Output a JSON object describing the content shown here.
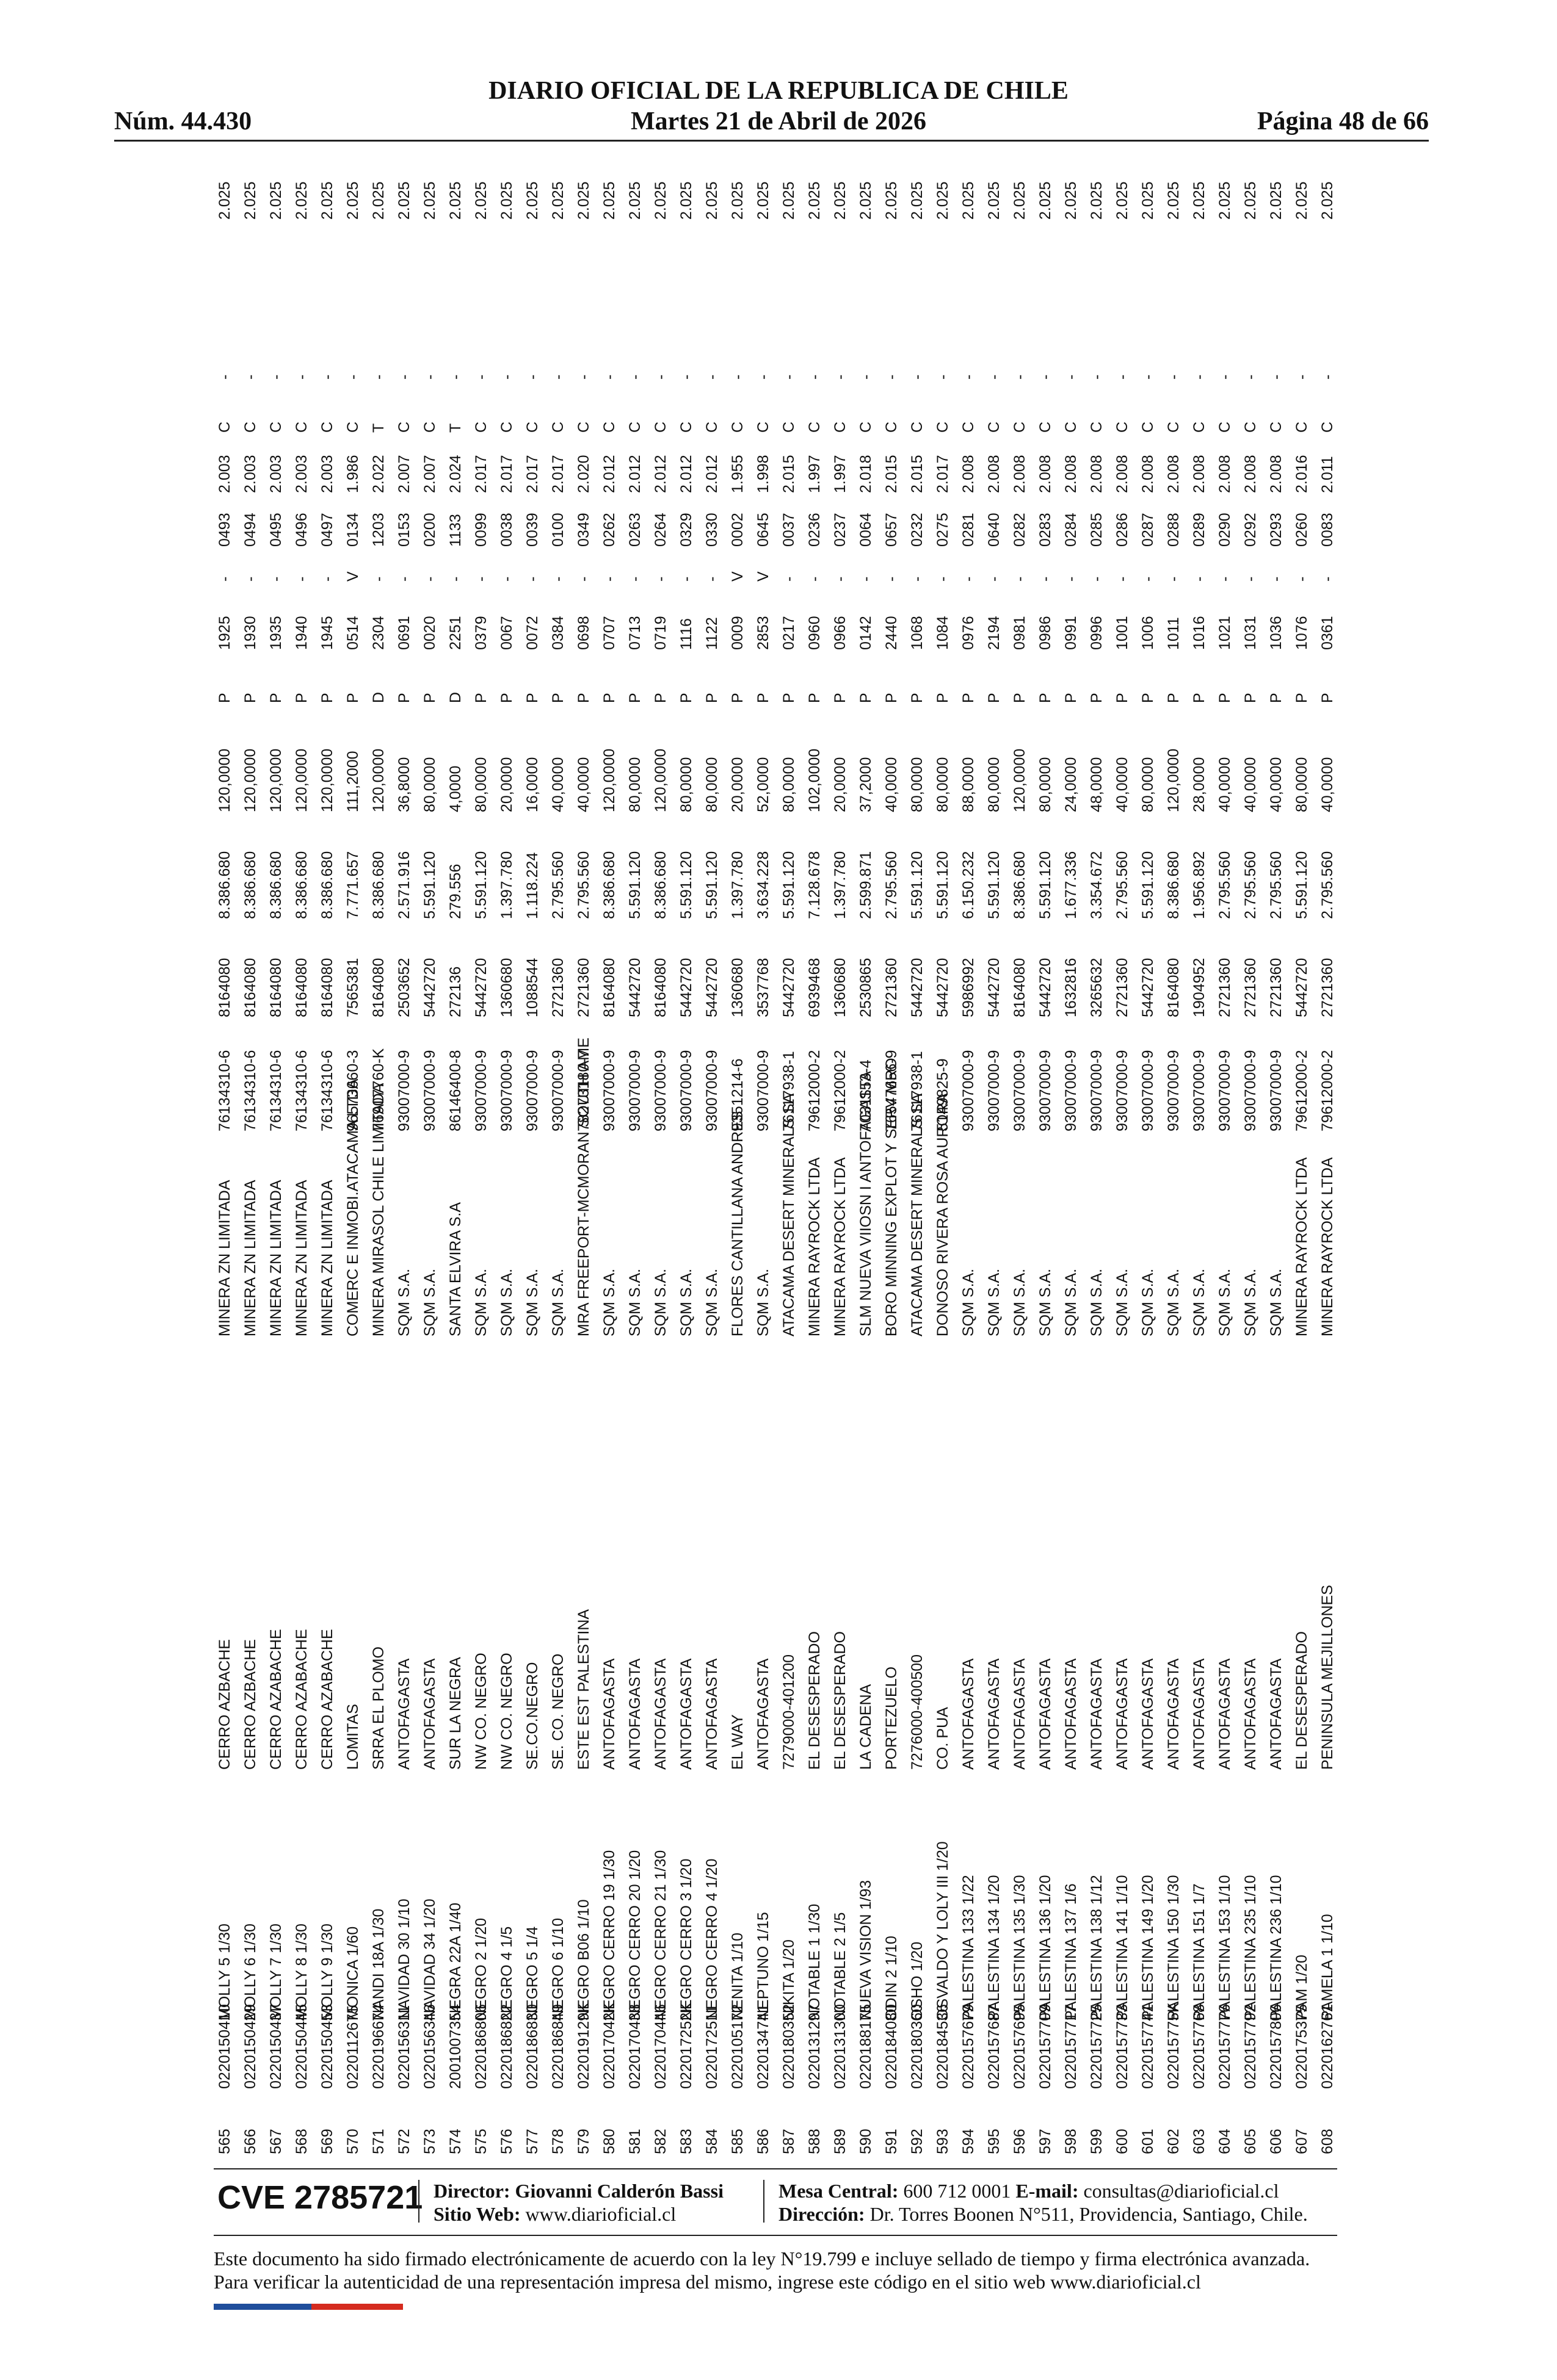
{
  "header": {
    "number": "Núm. 44.430",
    "title": "DIARIO OFICIAL DE LA REPUBLICA DE CHILE",
    "date": "Martes 21 de Abril de 2026",
    "page": "Página 48 de 66"
  },
  "table": {
    "rows": [
      [
        "565",
        "0220150410",
        "MOLLY 5 1/30",
        "CERRO AZBACHE",
        "MINERA ZN LIMITADA",
        "76134310-6",
        "8164080",
        "8.386.680",
        "120,0000",
        "P",
        "1925",
        "-",
        "0493",
        "2.003",
        "C",
        "-",
        "2.025"
      ],
      [
        "566",
        "0220150429",
        "MOLLY 6 1/30",
        "CERRO AZBACHE",
        "MINERA ZN LIMITADA",
        "76134310-6",
        "8164080",
        "8.386.680",
        "120,0000",
        "P",
        "1930",
        "-",
        "0494",
        "2.003",
        "C",
        "-",
        "2.025"
      ],
      [
        "567",
        "0220150437",
        "MOLLY 7 1/30",
        "CERRO AZABACHE",
        "MINERA ZN LIMITADA",
        "76134310-6",
        "8164080",
        "8.386.680",
        "120,0000",
        "P",
        "1935",
        "-",
        "0495",
        "2.003",
        "C",
        "-",
        "2.025"
      ],
      [
        "568",
        "0220150445",
        "MOLLY 8 1/30",
        "CERRO AZABACHE",
        "MINERA ZN LIMITADA",
        "76134310-6",
        "8164080",
        "8.386.680",
        "120,0000",
        "P",
        "1940",
        "-",
        "0496",
        "2.003",
        "C",
        "-",
        "2.025"
      ],
      [
        "569",
        "0220150453",
        "MOLLY 9 1/30",
        "CERRO AZABACHE",
        "MINERA ZN LIMITADA",
        "76134310-6",
        "8164080",
        "8.386.680",
        "120,0000",
        "P",
        "1945",
        "-",
        "0497",
        "2.003",
        "C",
        "-",
        "2.025"
      ],
      [
        "570",
        "0220112675",
        "MONICA 1/60",
        "LOMITAS",
        "COMERC E INMOBI.ATACAMA LTDA",
        "96573660-3",
        "7565381",
        "7.771.657",
        "111,2000",
        "P",
        "0514",
        "V",
        "0134",
        "1.986",
        "C",
        "-",
        "2.025"
      ],
      [
        "571",
        "0220196674",
        "NANDI 18A 1/30",
        "SRRA EL PLOMO",
        "MINERA MIRASOL CHILE LIMITADA",
        "76907760-K",
        "8164080",
        "8.386.680",
        "120,0000",
        "D",
        "2304",
        "-",
        "1203",
        "2.022",
        "T",
        "-",
        "2.025"
      ],
      [
        "572",
        "0220156311",
        "NAVIDAD 30 1/10",
        "ANTOFAGASTA",
        "SQM S.A.",
        "93007000-9",
        "2503652",
        "2.571.916",
        "36,8000",
        "P",
        "0691",
        "-",
        "0153",
        "2.007",
        "C",
        "-",
        "2.025"
      ],
      [
        "573",
        "0220156346",
        "NAVIDAD 34 1/20",
        "ANTOFAGASTA",
        "SQM S.A.",
        "93007000-9",
        "5442720",
        "5.591.120",
        "80,0000",
        "P",
        "0020",
        "-",
        "0200",
        "2.007",
        "C",
        "-",
        "2.025"
      ],
      [
        "574",
        "2001007354",
        "NEGRA 22A 1/40",
        "SUR LA NEGRA",
        "SANTA ELVIRA S.A",
        "86146400-8",
        "272136",
        "279.556",
        "4,0000",
        "D",
        "2251",
        "-",
        "1133",
        "2.024",
        "T",
        "-",
        "2.025"
      ],
      [
        "575",
        "0220186806",
        "NEGRO 2 1/20",
        "NW CO. NEGRO",
        "SQM S.A.",
        "93007000-9",
        "5442720",
        "5.591.120",
        "80,0000",
        "P",
        "0379",
        "-",
        "0099",
        "2.017",
        "C",
        "-",
        "2.025"
      ],
      [
        "576",
        "0220186822",
        "NEGRO 4 1/5",
        "NW CO. NEGRO",
        "SQM S.A.",
        "93007000-9",
        "1360680",
        "1.397.780",
        "20,0000",
        "P",
        "0067",
        "-",
        "0038",
        "2.017",
        "C",
        "-",
        "2.025"
      ],
      [
        "577",
        "0220186830",
        "NEGRO 5 1/4",
        "SE.CO.NEGRO",
        "SQM S.A.",
        "93007000-9",
        "1088544",
        "1.118.224",
        "16,0000",
        "P",
        "0072",
        "-",
        "0039",
        "2.017",
        "C",
        "-",
        "2.025"
      ],
      [
        "578",
        "0220186849",
        "NEGRO 6 1/10",
        "SE. CO. NEGRO",
        "SQM S.A.",
        "93007000-9",
        "2721360",
        "2.795.560",
        "40,0000",
        "P",
        "0384",
        "-",
        "0100",
        "2.017",
        "C",
        "-",
        "2.025"
      ],
      [
        "579",
        "022019129K",
        "NEGRO B06 1/10",
        "ESTE EST PALESTINA",
        "MRA FREEPORT-MCMORAN SOUTH AME",
        "78273180-7",
        "2721360",
        "2.795.560",
        "40,0000",
        "P",
        "0698",
        "-",
        "0349",
        "2.020",
        "C",
        "-",
        "2.025"
      ],
      [
        "580",
        "022017042K",
        "NEGRO CERRO 19 1/30",
        "ANTOFAGASTA",
        "SQM S.A.",
        "93007000-9",
        "8164080",
        "8.386.680",
        "120,0000",
        "P",
        "0707",
        "-",
        "0262",
        "2.012",
        "C",
        "-",
        "2.025"
      ],
      [
        "581",
        "0220170438",
        "NEGRO CERRO 20 1/20",
        "ANTOFAGASTA",
        "SQM S.A.",
        "93007000-9",
        "5442720",
        "5.591.120",
        "80,0000",
        "P",
        "0713",
        "-",
        "0263",
        "2.012",
        "C",
        "-",
        "2.025"
      ],
      [
        "582",
        "0220170446",
        "NEGRO CERRO 21 1/30",
        "ANTOFAGASTA",
        "SQM S.A.",
        "93007000-9",
        "8164080",
        "8.386.680",
        "120,0000",
        "P",
        "0719",
        "-",
        "0264",
        "2.012",
        "C",
        "-",
        "2.025"
      ],
      [
        "583",
        "022017252K",
        "NEGRO CERRO 3 1/20",
        "ANTOFAGASTA",
        "SQM S.A.",
        "93007000-9",
        "5442720",
        "5.591.120",
        "80,0000",
        "P",
        "1116",
        "-",
        "0329",
        "2.012",
        "C",
        "-",
        "2.025"
      ],
      [
        "584",
        "0220172511",
        "NEGRO CERRO 4 1/20",
        "ANTOFAGASTA",
        "SQM S.A.",
        "93007000-9",
        "5442720",
        "5.591.120",
        "80,0000",
        "P",
        "1122",
        "-",
        "0330",
        "2.012",
        "C",
        "-",
        "2.025"
      ],
      [
        "585",
        "0220105172",
        "NENITA 1/10",
        "EL WAY",
        "FLORES CANTILLANA ANDRES",
        "9351214-6",
        "1360680",
        "1.397.780",
        "20,0000",
        "P",
        "0009",
        "V",
        "0002",
        "1.955",
        "C",
        "-",
        "2.025"
      ],
      [
        "586",
        "0220134741",
        "NEPTUNO 1/15",
        "ANTOFAGASTA",
        "SQM S.A.",
        "93007000-9",
        "3537768",
        "3.634.228",
        "52,0000",
        "P",
        "2853",
        "V",
        "0645",
        "1.998",
        "C",
        "-",
        "2.025"
      ],
      [
        "587",
        "0220180352",
        "NIKITA 1/20",
        "7279000-401200",
        "ATACAMA DESERT MINERALS SA",
        "76117938-1",
        "5442720",
        "5.591.120",
        "80,0000",
        "P",
        "0217",
        "-",
        "0037",
        "2.015",
        "C",
        "-",
        "2.025"
      ],
      [
        "588",
        "0220131297",
        "NOTABLE 1 1/30",
        "EL DESESPERADO",
        "MINERA RAYROCK LTDA",
        "79612000-2",
        "6939468",
        "7.128.678",
        "102,0000",
        "P",
        "0960",
        "-",
        "0236",
        "1.997",
        "C",
        "-",
        "2.025"
      ],
      [
        "589",
        "0220131300",
        "NOTABLE 2 1/5",
        "EL DESESPERADO",
        "MINERA RAYROCK LTDA",
        "79612000-2",
        "1360680",
        "1.397.780",
        "20,0000",
        "P",
        "0966",
        "-",
        "0237",
        "1.997",
        "C",
        "-",
        "2.025"
      ],
      [
        "590",
        "0220188175",
        "NUEVA VISION 1/93",
        "LA CADENA",
        "SLM NUEVA VIIOSN I ANTOFAGASTA",
        "7031153-4",
        "2530865",
        "2.599.871",
        "37,2000",
        "P",
        "0142",
        "-",
        "0064",
        "2.018",
        "C",
        "-",
        "2.025"
      ],
      [
        "591",
        "0220184080",
        "ODIN 2 1/10",
        "PORTEZUELO",
        "BORO MINNING EXPLOT Y SERV MRO",
        "76547656-9",
        "2721360",
        "2.795.560",
        "40,0000",
        "P",
        "2440",
        "-",
        "0657",
        "2.015",
        "C",
        "-",
        "2.025"
      ],
      [
        "592",
        "0220180360",
        "OSHO 1/20",
        "7276000-400500",
        "ATACAMA DESERT MINERALS SA",
        "76117938-1",
        "5442720",
        "5.591.120",
        "80,0000",
        "P",
        "1068",
        "-",
        "0232",
        "2.015",
        "C",
        "-",
        "2.025"
      ],
      [
        "593",
        "0220184536",
        "OSVALDO Y LOLY III 1/20",
        "CO. PUA",
        "DONOSO RIVERA ROSA AURORA",
        "5149825-9",
        "5442720",
        "5.591.120",
        "80,0000",
        "P",
        "1084",
        "-",
        "0275",
        "2.017",
        "C",
        "-",
        "2.025"
      ],
      [
        "594",
        "0220157679",
        "PALESTINA 133 1/22",
        "ANTOFAGASTA",
        "SQM S.A.",
        "93007000-9",
        "5986992",
        "6.150.232",
        "88,0000",
        "P",
        "0976",
        "-",
        "0281",
        "2.008",
        "C",
        "-",
        "2.025"
      ],
      [
        "595",
        "0220157687",
        "PALESTINA 134 1/20",
        "ANTOFAGASTA",
        "SQM S.A.",
        "93007000-9",
        "5442720",
        "5.591.120",
        "80,0000",
        "P",
        "2194",
        "-",
        "0640",
        "2.008",
        "C",
        "-",
        "2.025"
      ],
      [
        "596",
        "0220157695",
        "PALESTINA 135 1/30",
        "ANTOFAGASTA",
        "SQM S.A.",
        "93007000-9",
        "8164080",
        "8.386.680",
        "120,0000",
        "P",
        "0981",
        "-",
        "0282",
        "2.008",
        "C",
        "-",
        "2.025"
      ],
      [
        "597",
        "0220157709",
        "PALESTINA 136 1/20",
        "ANTOFAGASTA",
        "SQM S.A.",
        "93007000-9",
        "5442720",
        "5.591.120",
        "80,0000",
        "P",
        "0986",
        "-",
        "0283",
        "2.008",
        "C",
        "-",
        "2.025"
      ],
      [
        "598",
        "0220157717",
        "PALESTINA 137 1/6",
        "ANTOFAGASTA",
        "SQM S.A.",
        "93007000-9",
        "1632816",
        "1.677.336",
        "24,0000",
        "P",
        "0991",
        "-",
        "0284",
        "2.008",
        "C",
        "-",
        "2.025"
      ],
      [
        "599",
        "0220157725",
        "PALESTINA 138 1/12",
        "ANTOFAGASTA",
        "SQM S.A.",
        "93007000-9",
        "3265632",
        "3.354.672",
        "48,0000",
        "P",
        "0996",
        "-",
        "0285",
        "2.008",
        "C",
        "-",
        "2.025"
      ],
      [
        "600",
        "0220157733",
        "PALESTINA 141 1/10",
        "ANTOFAGASTA",
        "SQM S.A.",
        "93007000-9",
        "2721360",
        "2.795.560",
        "40,0000",
        "P",
        "1001",
        "-",
        "0286",
        "2.008",
        "C",
        "-",
        "2.025"
      ],
      [
        "601",
        "0220157741",
        "PALESTINA 149 1/20",
        "ANTOFAGASTA",
        "SQM S.A.",
        "93007000-9",
        "5442720",
        "5.591.120",
        "80,0000",
        "P",
        "1006",
        "-",
        "0287",
        "2.008",
        "C",
        "-",
        "2.025"
      ],
      [
        "602",
        "022015775K",
        "PALESTINA 150 1/30",
        "ANTOFAGASTA",
        "SQM S.A.",
        "93007000-9",
        "8164080",
        "8.386.680",
        "120,0000",
        "P",
        "1011",
        "-",
        "0288",
        "2.008",
        "C",
        "-",
        "2.025"
      ],
      [
        "603",
        "0220157768",
        "PALESTINA 151 1/7",
        "ANTOFAGASTA",
        "SQM S.A.",
        "93007000-9",
        "1904952",
        "1.956.892",
        "28,0000",
        "P",
        "1016",
        "-",
        "0289",
        "2.008",
        "C",
        "-",
        "2.025"
      ],
      [
        "604",
        "0220157776",
        "PALESTINA 153 1/10",
        "ANTOFAGASTA",
        "SQM S.A.",
        "93007000-9",
        "2721360",
        "2.795.560",
        "40,0000",
        "P",
        "1021",
        "-",
        "0290",
        "2.008",
        "C",
        "-",
        "2.025"
      ],
      [
        "605",
        "0220157792",
        "PALESTINA 235 1/10",
        "ANTOFAGASTA",
        "SQM S.A.",
        "93007000-9",
        "2721360",
        "2.795.560",
        "40,0000",
        "P",
        "1031",
        "-",
        "0292",
        "2.008",
        "C",
        "-",
        "2.025"
      ],
      [
        "606",
        "0220157806",
        "PALESTINA 236 1/10",
        "ANTOFAGASTA",
        "SQM S.A.",
        "93007000-9",
        "2721360",
        "2.795.560",
        "40,0000",
        "P",
        "1036",
        "-",
        "0293",
        "2.008",
        "C",
        "-",
        "2.025"
      ],
      [
        "607",
        "0220175375",
        "PAM 1/20",
        "EL DESESPERADO",
        "MINERA RAYROCK LTDA",
        "79612000-2",
        "5442720",
        "5.591.120",
        "80,0000",
        "P",
        "1076",
        "-",
        "0260",
        "2.016",
        "C",
        "-",
        "2.025"
      ],
      [
        "608",
        "0220162761",
        "PAMELA 1 1/10",
        "PENINSULA MEJILLONES",
        "MINERA RAYROCK LTDA",
        "79612000-2",
        "2721360",
        "2.795.560",
        "40,0000",
        "P",
        "0361",
        "-",
        "0083",
        "2.011",
        "C",
        "-",
        "2.025"
      ]
    ]
  },
  "footer": {
    "cve": "CVE 2785721",
    "director_label": "Director:",
    "director": "Giovanni Calderón Bassi",
    "web_label": "Sitio Web:",
    "web": "www.diarioficial.cl",
    "mesa_label": "Mesa Central:",
    "mesa": "600 712 0001",
    "email_label": "E-mail:",
    "email": "consultas@diarioficial.cl",
    "address_label": "Dirección:",
    "address": "Dr. Torres Boonen N°511, Providencia, Santiago, Chile.",
    "notice": "Este documento ha sido firmado electrónicamente de acuerdo con la ley N°19.799 e incluye sellado de tiempo y firma electrónica avanzada. Para verificar la autenticidad de una representación impresa del mismo, ingrese este código en el sitio web www.diarioficial.cl"
  }
}
